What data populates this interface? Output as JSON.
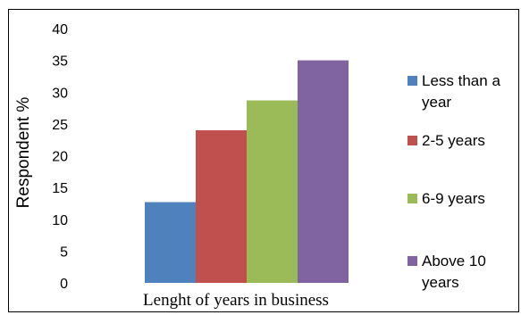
{
  "chart_data": {
    "type": "bar",
    "xlabel": "Lenght of years in business",
    "ylabel": "Respondent %",
    "ylim": [
      0,
      40
    ],
    "yticks": [
      "0",
      "5",
      "10",
      "15",
      "20",
      "25",
      "30",
      "35",
      "40"
    ],
    "grid": false,
    "legend_position": "right",
    "series": [
      {
        "name": "Less than a year",
        "legend_lines": [
          "Less than a",
          "year"
        ],
        "value": 12.7,
        "color": "#4f81bd"
      },
      {
        "name": "2-5 years",
        "legend_lines": [
          "2-5 years"
        ],
        "value": 24,
        "color": "#c0504d"
      },
      {
        "name": "6-9 years",
        "legend_lines": [
          "6-9 years"
        ],
        "value": 28.7,
        "color": "#9bbb59"
      },
      {
        "name": "Above 10 years",
        "legend_lines": [
          "Above 10",
          "years"
        ],
        "value": 35,
        "color": "#8064a2"
      }
    ]
  }
}
